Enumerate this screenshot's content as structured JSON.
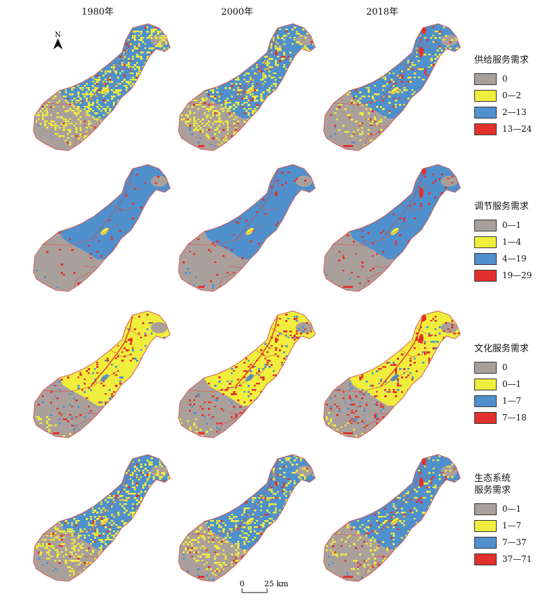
{
  "years": [
    "1980年",
    "2000年",
    "2018年"
  ],
  "north_label": "N",
  "scale": {
    "zero": "0",
    "distance": "25 km"
  },
  "colors": {
    "gray": "#aaa09b",
    "yellow": "#f0ee3c",
    "blue": "#4f90cd",
    "red": "#e2312d",
    "outline": "#d65a55"
  },
  "rows": [
    {
      "title_lines": [
        "供给服务需求"
      ],
      "legend": [
        {
          "label": "0",
          "color": "#aaa09b"
        },
        {
          "label": "0—2",
          "color": "#f0ee3c"
        },
        {
          "label": "2—13",
          "color": "#4f90cd"
        },
        {
          "label": "13—24",
          "color": "#e2312d"
        }
      ],
      "theme": "supply"
    },
    {
      "title_lines": [
        "调节服务需求"
      ],
      "legend": [
        {
          "label": "0—1",
          "color": "#aaa09b"
        },
        {
          "label": "1—4",
          "color": "#f0ee3c"
        },
        {
          "label": "4—19",
          "color": "#4f90cd"
        },
        {
          "label": "19—29",
          "color": "#e2312d"
        }
      ],
      "theme": "regulating"
    },
    {
      "title_lines": [
        "文化服务需求"
      ],
      "legend": [
        {
          "label": "0",
          "color": "#aaa09b"
        },
        {
          "label": "0—1",
          "color": "#f0ee3c"
        },
        {
          "label": "1—7",
          "color": "#4f90cd"
        },
        {
          "label": "7—18",
          "color": "#e2312d"
        }
      ],
      "theme": "cultural"
    },
    {
      "title_lines": [
        "生态系统",
        "服务需求"
      ],
      "legend": [
        {
          "label": "0—1",
          "color": "#aaa09b"
        },
        {
          "label": "1—7",
          "color": "#f0ee3c"
        },
        {
          "label": "7—37",
          "color": "#4f90cd"
        },
        {
          "label": "37—71",
          "color": "#e2312d"
        }
      ],
      "theme": "ecosystem"
    }
  ]
}
